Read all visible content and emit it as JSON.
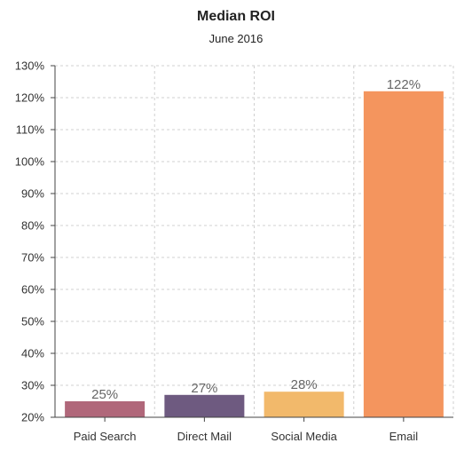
{
  "chart_data": {
    "type": "bar",
    "title": "Median ROI",
    "subtitle": "June 2016",
    "categories": [
      "Paid Search",
      "Direct Mail",
      "Social Media",
      "Email"
    ],
    "values": [
      25,
      27,
      28,
      122
    ],
    "data_labels": [
      "25%",
      "27%",
      "28%",
      "122%"
    ],
    "bar_colors": [
      "#b0677a",
      "#6e5a80",
      "#f2b96b",
      "#f4955e"
    ],
    "ylim": [
      20,
      130
    ],
    "ytick_labels": [
      "20%",
      "30%",
      "40%",
      "50%",
      "60%",
      "70%",
      "80%",
      "90%",
      "100%",
      "110%",
      "120%",
      "130%"
    ],
    "xlabel": "",
    "ylabel": "",
    "grid": true,
    "legend": "none"
  }
}
